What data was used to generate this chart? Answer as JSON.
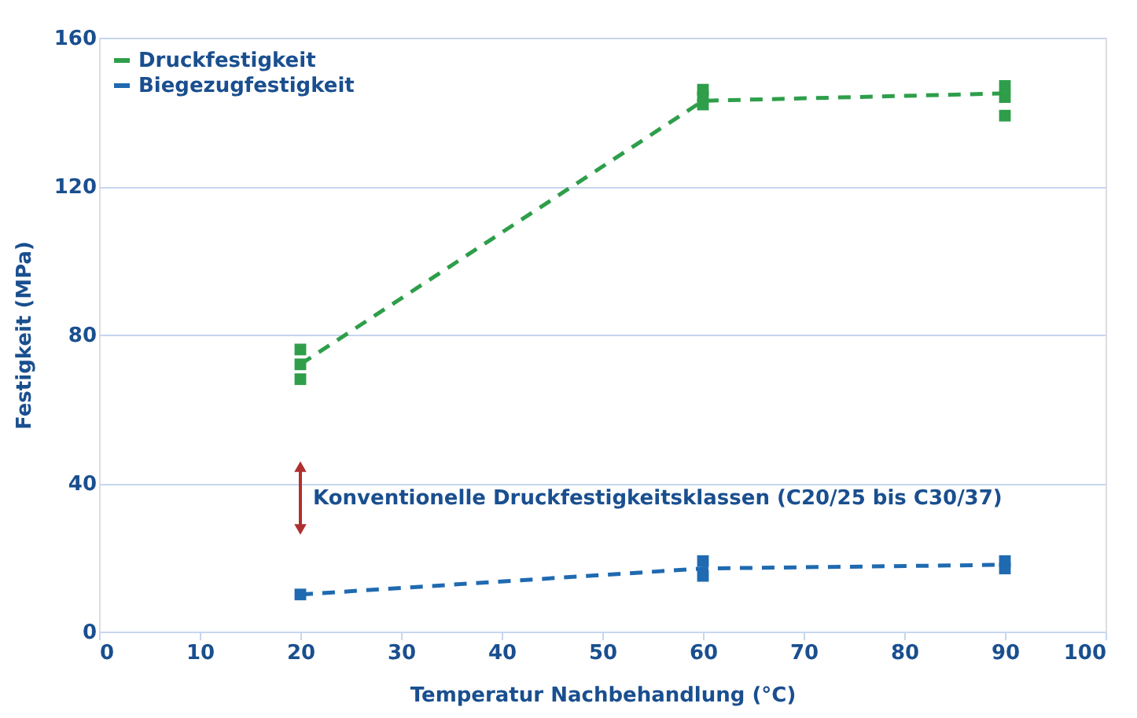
{
  "chart_data": {
    "type": "line",
    "xlabel": "Temperatur Nachbehandlung (°C)",
    "ylabel": "Festigkeit (MPa)",
    "x": [
      20,
      60,
      90
    ],
    "series": [
      {
        "name": "Druckfestigkeit",
        "color": "#2e9e4a",
        "values": [
          72,
          143,
          145
        ],
        "line_style": "dashed",
        "marker": "none"
      },
      {
        "name": "Biegezugfestigkeit",
        "color": "#1f6ab0",
        "values": [
          10,
          17,
          18
        ],
        "line_style": "dashed",
        "marker": "none"
      },
      {
        "type": "scatter",
        "color": "#2e9e4a",
        "marker": "square",
        "x": [
          20,
          20,
          20,
          60,
          60,
          60,
          90,
          90,
          90
        ],
        "values": [
          68,
          72,
          76,
          142,
          144,
          146,
          147,
          144,
          139
        ]
      },
      {
        "type": "scatter",
        "color": "#1f6ab0",
        "marker": "square",
        "x": [
          20,
          60,
          60,
          90,
          90
        ],
        "values": [
          10,
          15,
          19,
          17,
          19
        ]
      }
    ],
    "annotations": [
      "Konventionelle Druckfestigkeitsklassen (C20/25 bis C30/37)"
    ],
    "xlim": [
      0,
      100
    ],
    "xticks": [
      0,
      10,
      20,
      30,
      40,
      50,
      60,
      70,
      80,
      90,
      100
    ],
    "ylim": [
      0,
      160
    ],
    "yticks": [
      0,
      40,
      80,
      120,
      160
    ],
    "grid": "y",
    "legend": "top left"
  }
}
